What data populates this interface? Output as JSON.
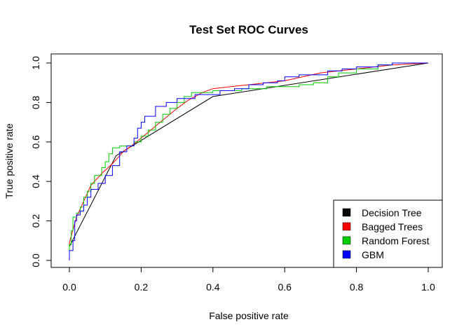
{
  "chart_data": {
    "type": "line",
    "title": "Test Set ROC Curves",
    "xlabel": "False positive rate",
    "ylabel": "True positive rate",
    "xlim": [
      0,
      1
    ],
    "ylim": [
      0,
      1
    ],
    "x_ticks": [
      "0.0",
      "0.2",
      "0.4",
      "0.6",
      "0.8",
      "1.0"
    ],
    "y_ticks": [
      "0.0",
      "0.2",
      "0.4",
      "0.6",
      "0.8",
      "1.0"
    ],
    "grid": false,
    "legend_position": "bottom-right",
    "series": [
      {
        "name": "Decision Tree",
        "color": "#000000",
        "step": false,
        "points": [
          [
            0,
            0
          ],
          [
            0,
            0.07
          ],
          [
            0.13,
            0.53
          ],
          [
            0.4,
            0.83
          ],
          [
            1,
            1
          ]
        ]
      },
      {
        "name": "Bagged Trees",
        "color": "#ff0000",
        "step": false,
        "points": [
          [
            0,
            0
          ],
          [
            0,
            0.09
          ],
          [
            0.02,
            0.22
          ],
          [
            0.04,
            0.3
          ],
          [
            0.06,
            0.38
          ],
          [
            0.09,
            0.44
          ],
          [
            0.12,
            0.49
          ],
          [
            0.15,
            0.55
          ],
          [
            0.18,
            0.59
          ],
          [
            0.22,
            0.65
          ],
          [
            0.26,
            0.71
          ],
          [
            0.3,
            0.77
          ],
          [
            0.33,
            0.81
          ],
          [
            0.37,
            0.85
          ],
          [
            0.4,
            0.87
          ],
          [
            0.45,
            0.88
          ],
          [
            0.5,
            0.89
          ],
          [
            0.55,
            0.9
          ],
          [
            0.6,
            0.91
          ],
          [
            0.65,
            0.93
          ],
          [
            0.7,
            0.95
          ],
          [
            0.75,
            0.96
          ],
          [
            0.8,
            0.97
          ],
          [
            0.85,
            0.98
          ],
          [
            0.9,
            0.99
          ],
          [
            1,
            1
          ]
        ]
      },
      {
        "name": "Random Forest",
        "color": "#00cc00",
        "step": true,
        "points": [
          [
            0,
            0
          ],
          [
            0,
            0.08
          ],
          [
            0.005,
            0.15
          ],
          [
            0.01,
            0.22
          ],
          [
            0.02,
            0.24
          ],
          [
            0.03,
            0.27
          ],
          [
            0.04,
            0.32
          ],
          [
            0.05,
            0.35
          ],
          [
            0.06,
            0.39
          ],
          [
            0.07,
            0.43
          ],
          [
            0.09,
            0.47
          ],
          [
            0.1,
            0.5
          ],
          [
            0.11,
            0.54
          ],
          [
            0.12,
            0.57
          ],
          [
            0.14,
            0.58
          ],
          [
            0.17,
            0.58
          ],
          [
            0.18,
            0.6
          ],
          [
            0.2,
            0.63
          ],
          [
            0.22,
            0.66
          ],
          [
            0.24,
            0.7
          ],
          [
            0.26,
            0.74
          ],
          [
            0.28,
            0.77
          ],
          [
            0.3,
            0.8
          ],
          [
            0.32,
            0.83
          ],
          [
            0.34,
            0.85
          ],
          [
            0.38,
            0.85
          ],
          [
            0.4,
            0.86
          ],
          [
            0.44,
            0.86
          ],
          [
            0.48,
            0.87
          ],
          [
            0.52,
            0.87
          ],
          [
            0.55,
            0.88
          ],
          [
            0.6,
            0.88
          ],
          [
            0.64,
            0.89
          ],
          [
            0.68,
            0.9
          ],
          [
            0.72,
            0.93
          ],
          [
            0.75,
            0.95
          ],
          [
            0.8,
            0.97
          ],
          [
            0.86,
            0.99
          ],
          [
            0.9,
            1
          ],
          [
            1,
            1
          ]
        ]
      },
      {
        "name": "GBM",
        "color": "#0000ff",
        "step": true,
        "points": [
          [
            0,
            0
          ],
          [
            0,
            0.05
          ],
          [
            0.01,
            0.1
          ],
          [
            0.015,
            0.2
          ],
          [
            0.02,
            0.23
          ],
          [
            0.03,
            0.25
          ],
          [
            0.04,
            0.28
          ],
          [
            0.05,
            0.32
          ],
          [
            0.06,
            0.36
          ],
          [
            0.08,
            0.39
          ],
          [
            0.1,
            0.43
          ],
          [
            0.12,
            0.48
          ],
          [
            0.14,
            0.55
          ],
          [
            0.16,
            0.58
          ],
          [
            0.18,
            0.62
          ],
          [
            0.19,
            0.67
          ],
          [
            0.2,
            0.7
          ],
          [
            0.21,
            0.73
          ],
          [
            0.24,
            0.78
          ],
          [
            0.27,
            0.8
          ],
          [
            0.3,
            0.82
          ],
          [
            0.35,
            0.84
          ],
          [
            0.4,
            0.84
          ],
          [
            0.42,
            0.86
          ],
          [
            0.46,
            0.87
          ],
          [
            0.5,
            0.89
          ],
          [
            0.54,
            0.9
          ],
          [
            0.58,
            0.91
          ],
          [
            0.6,
            0.93
          ],
          [
            0.64,
            0.94
          ],
          [
            0.68,
            0.94
          ],
          [
            0.72,
            0.96
          ],
          [
            0.76,
            0.97
          ],
          [
            0.8,
            0.98
          ],
          [
            0.86,
            0.99
          ],
          [
            0.9,
            1
          ],
          [
            1,
            1
          ]
        ]
      }
    ]
  }
}
